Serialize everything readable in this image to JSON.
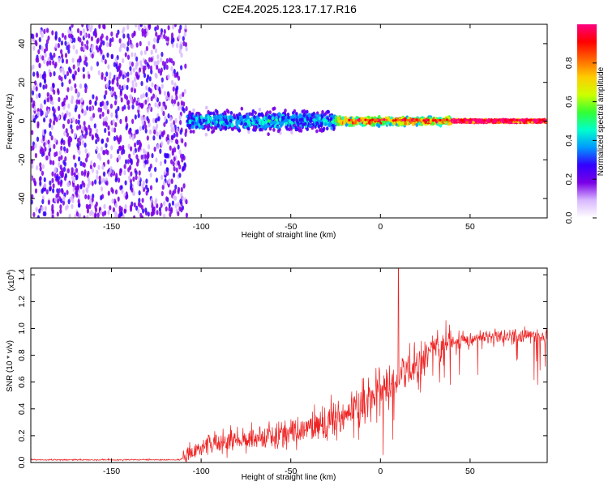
{
  "title": "C2E4.2025.123.17.17.R16",
  "chart_data": [
    {
      "type": "heatmap",
      "xlabel": "Height of straight line (km)",
      "ylabel": "Frequency (Hz)",
      "xlim": [
        -195,
        93
      ],
      "ylim": [
        -50,
        50
      ],
      "xticks": [
        -150,
        -100,
        -50,
        0,
        50
      ],
      "yticks": [
        -40,
        -20,
        0,
        20,
        40
      ],
      "colorbar": {
        "label": "Normalized spectral amplitude",
        "range": [
          0,
          1
        ],
        "ticks": [
          "0.0",
          "0.2",
          "0.4",
          "0.6",
          "0.8"
        ],
        "colors": [
          "#ffffff",
          "#d8b8ff",
          "#7a00e6",
          "#3300ff",
          "#0099ff",
          "#00ffcc",
          "#33ff33",
          "#ccff00",
          "#ffcc00",
          "#ff6600",
          "#ff0000",
          "#ff0080"
        ]
      },
      "regions": [
        {
          "x": [
            -195,
            -108
          ],
          "description_level": 0.18,
          "freq_spread": 50
        },
        {
          "x": [
            -108,
            -25
          ],
          "description_level": 0.35,
          "freq_spread": 8
        },
        {
          "x": [
            -25,
            40
          ],
          "description_level": 0.7,
          "freq_spread": 3
        },
        {
          "x": [
            40,
            93
          ],
          "description_level": 0.95,
          "freq_spread": 1
        }
      ]
    },
    {
      "type": "line",
      "xlabel": "Height of straight line (km)",
      "ylabel": "SNR (10 * v/v)",
      "multiplier_label": "(x10",
      "multiplier_exp": "4",
      "multiplier_close": ")",
      "xlim": [
        -195,
        93
      ],
      "ylim": [
        0,
        1.45
      ],
      "xticks": [
        -150,
        -100,
        -50,
        0,
        50
      ],
      "yticks": [
        "0.0",
        "0.2",
        "0.4",
        "0.6",
        "0.8",
        "1.0",
        "1.2",
        "1.4"
      ],
      "color": "#ee2222",
      "trend": {
        "x": [
          -195,
          -112,
          -108,
          -100,
          -80,
          -60,
          -45,
          -30,
          -20,
          -10,
          0,
          10,
          20,
          30,
          40,
          55,
          70,
          93
        ],
        "y": [
          0.02,
          0.02,
          0.05,
          0.12,
          0.18,
          0.2,
          0.24,
          0.3,
          0.36,
          0.44,
          0.52,
          0.62,
          0.74,
          0.84,
          0.9,
          0.93,
          0.94,
          0.95
        ]
      },
      "peak": {
        "x": 10,
        "y": 1.45
      }
    }
  ]
}
